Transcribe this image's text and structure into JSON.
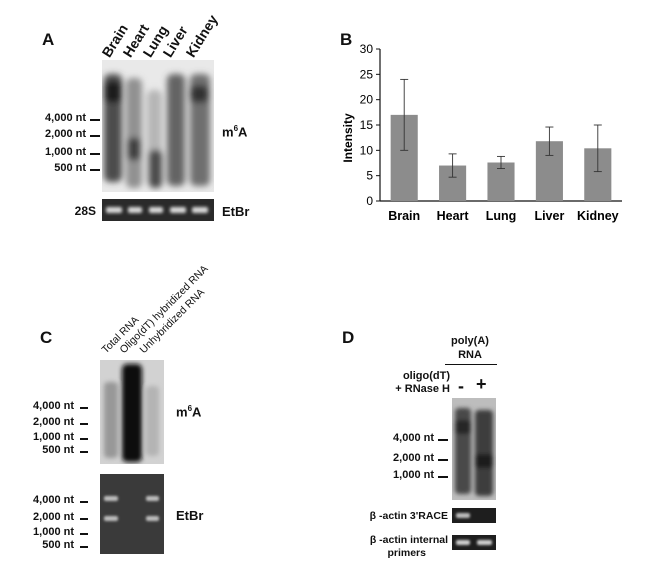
{
  "panel_a": {
    "letter": "A",
    "lanes": [
      "Brain",
      "Heart",
      "Lung",
      "Liver",
      "Kidney"
    ],
    "markers": [
      "4,000 nt",
      "2,000 nt",
      "1,000 nt",
      "500 nt"
    ],
    "stain_prefix": "m",
    "stain_sup": "6",
    "stain_suffix": "A",
    "loading_label": "28S",
    "loading_stain": "EtBr"
  },
  "panel_b": {
    "letter": "B"
  },
  "chart_data": {
    "type": "bar",
    "categories": [
      "Brain",
      "Heart",
      "Lung",
      "Liver",
      "Kidney"
    ],
    "values": [
      17,
      7,
      7.6,
      11.8,
      10.4
    ],
    "errors": [
      7,
      2.3,
      1.2,
      2.8,
      4.6
    ],
    "ylabel": "Intensity",
    "ylim": [
      0,
      30
    ],
    "yticks": [
      "0",
      "5",
      "10",
      "15",
      "20",
      "25",
      "30"
    ],
    "bar_color": "#8c8c8c",
    "grid": false
  },
  "panel_c": {
    "letter": "C",
    "lanes": [
      "Total RNA",
      "Oligo(dT) hybridized RNA",
      "Unhybridized RNA"
    ],
    "markers_top": [
      "4,000 nt",
      "2,000 nt",
      "1,000 nt",
      "500 nt"
    ],
    "markers_bottom": [
      "4,000 nt",
      "2,000 nt",
      "1,000 nt",
      "500 nt"
    ],
    "stain_prefix": "m",
    "stain_sup": "6",
    "stain_suffix": "A",
    "loading_stain": "EtBr"
  },
  "panel_d": {
    "letter": "D",
    "header_line1": "poly(A)",
    "header_line2": "RNA",
    "treatment_line1": "oligo(dT)",
    "treatment_line2": "+ RNase H",
    "minus": "-",
    "plus": "+",
    "markers": [
      "4,000 nt",
      "2,000 nt",
      "1,000 nt"
    ],
    "race_label": "β -actin 3'RACE",
    "internal_line1": "β -actin internal",
    "internal_line2": "primers"
  }
}
